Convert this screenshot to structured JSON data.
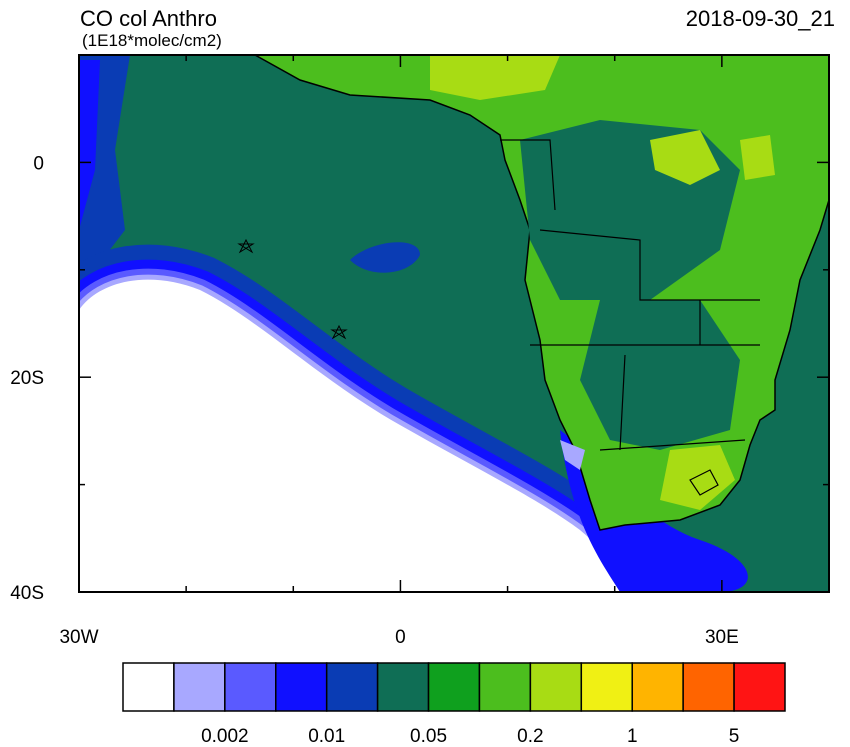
{
  "header": {
    "title": "CO col Anthro",
    "units": "(1E18*molec/cm2)",
    "timestamp": "2018-09-30_21"
  },
  "map": {
    "xlim": [
      -30,
      40
    ],
    "ylim": [
      -40,
      10
    ],
    "lon_ticks": [
      {
        "value": -30,
        "label": "30W"
      },
      {
        "value": 0,
        "label": "0"
      },
      {
        "value": 30,
        "label": "30E"
      }
    ],
    "lon_minor_ticks": [
      -20,
      -10,
      10,
      20,
      40
    ],
    "lat_ticks": [
      {
        "value": 0,
        "label": "0"
      },
      {
        "value": -20,
        "label": "20S"
      },
      {
        "value": -40,
        "label": "40S"
      }
    ],
    "lat_minor_ticks": [
      10,
      -10,
      -30
    ]
  },
  "colorbar": {
    "colors": [
      "#ffffff",
      "#a8a8ff",
      "#5a5aff",
      "#1010ff",
      "#0a3cb4",
      "#0f6e55",
      "#0fa01e",
      "#4cbe1e",
      "#a8dc14",
      "#f0f014",
      "#ffb400",
      "#ff6400",
      "#ff1414"
    ],
    "labels": [
      "0.002",
      "0.01",
      "0.05",
      "0.2",
      "1",
      "5"
    ]
  }
}
